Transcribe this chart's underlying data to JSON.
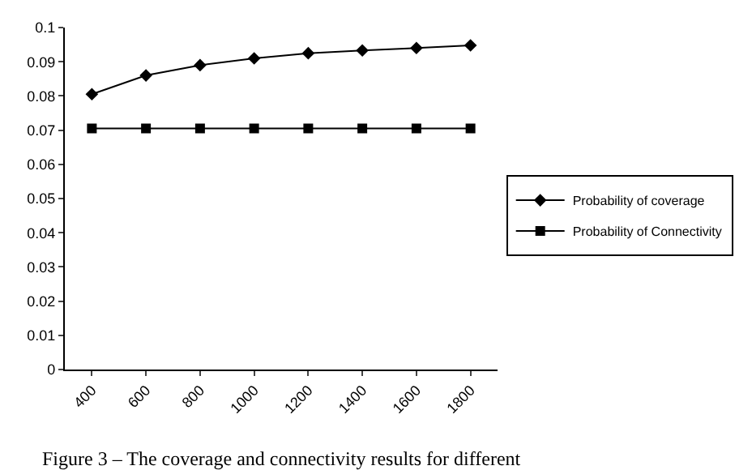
{
  "chart_data": {
    "type": "line",
    "categories": [
      "400",
      "600",
      "800",
      "1000",
      "1200",
      "1400",
      "1600",
      "1800"
    ],
    "series": [
      {
        "name": "Probability of coverage",
        "color": "#000000",
        "marker": "diamond",
        "values": [
          0.0805,
          0.086,
          0.089,
          0.091,
          0.0925,
          0.0933,
          0.094,
          0.0948
        ]
      },
      {
        "name": "Probability of Connectivity",
        "color": "#000000",
        "marker": "square",
        "values": [
          0.0705,
          0.0705,
          0.0705,
          0.0705,
          0.0705,
          0.0705,
          0.0705,
          0.0705
        ]
      }
    ],
    "ylim": [
      0,
      0.1
    ],
    "yticks": [
      0,
      0.01,
      0.02,
      0.03,
      0.04,
      0.05,
      0.06,
      0.07,
      0.08,
      0.09,
      0.1
    ],
    "legend": "right",
    "line_style": "solid",
    "annotations": [
      "Figure 3 – The coverage and connectivity results for different"
    ]
  }
}
